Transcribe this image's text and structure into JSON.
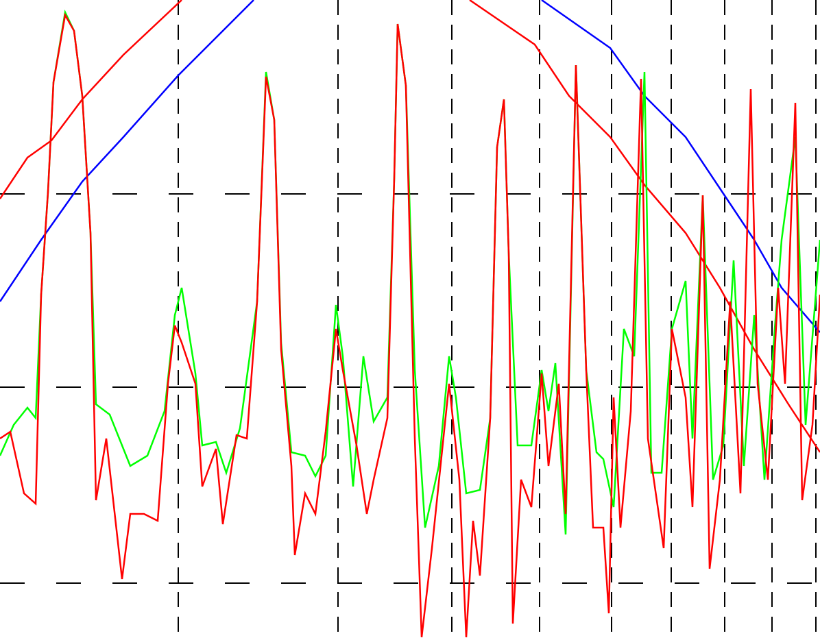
{
  "chart_data": {
    "type": "line",
    "grid": true,
    "xlim": [
      0,
      1196
    ],
    "ylim": [
      934,
      0
    ],
    "xticks": [
      260,
      493,
      659,
      787,
      892,
      979,
      1057,
      1126,
      1190
    ],
    "yticks": [
      283,
      565,
      851
    ],
    "series": [
      {
        "color": "#0000ff",
        "x": [
          0,
          60,
          120,
          180,
          260,
          370,
          500,
          790,
          890,
          940,
          1000,
          1060,
          1100,
          1140,
          1196
        ],
        "values": [
          440,
          350,
          265,
          200,
          110,
          0,
          null,
          0,
          70,
          140,
          200,
          290,
          350,
          420,
          485
        ]
      },
      {
        "color": "#ff0000",
        "x": [
          0,
          40,
          75,
          120,
          180,
          265,
          500,
          685,
          780,
          830,
          890,
          940,
          1000,
          1050,
          1100,
          1150,
          1196
        ],
        "values": [
          290,
          230,
          205,
          145,
          80,
          0,
          null,
          0,
          65,
          140,
          200,
          270,
          340,
          420,
          510,
          590,
          660
        ]
      },
      {
        "color": "#00ff00",
        "x": [
          0,
          20,
          40,
          52,
          60,
          70,
          78,
          95,
          108,
          120,
          132,
          140,
          160,
          190,
          215,
          240,
          255,
          265,
          285,
          295,
          315,
          330,
          350,
          375,
          388,
          400,
          410,
          425,
          445,
          460,
          475,
          490,
          500,
          515,
          530,
          545,
          565,
          575,
          580,
          592,
          605,
          620,
          640,
          655,
          665,
          680,
          700,
          715,
          725,
          735,
          742,
          755,
          775,
          790,
          800,
          810,
          825,
          840,
          855,
          870,
          880,
          895,
          910,
          925,
          940,
          950,
          965,
          980,
          1000,
          1010,
          1025,
          1040,
          1055,
          1070,
          1085,
          1100,
          1115,
          1130,
          1140,
          1160,
          1175,
          1196
        ],
        "values": [
          665,
          620,
          595,
          610,
          430,
          280,
          120,
          18,
          45,
          140,
          340,
          590,
          605,
          680,
          665,
          600,
          460,
          420,
          545,
          650,
          645,
          690,
          625,
          440,
          105,
          175,
          500,
          660,
          665,
          695,
          665,
          445,
          520,
          710,
          520,
          615,
          580,
          260,
          35,
          125,
          540,
          770,
          680,
          520,
          580,
          720,
          715,
          610,
          215,
          145,
          370,
          650,
          650,
          540,
          600,
          530,
          780,
          95,
          540,
          660,
          670,
          740,
          480,
          520,
          105,
          690,
          690,
          480,
          410,
          640,
          285,
          700,
          650,
          380,
          680,
          460,
          700,
          480,
          350,
          200,
          620,
          350
        ]
      },
      {
        "color": "#ff0000",
        "x": [
          0,
          15,
          35,
          52,
          60,
          70,
          78,
          95,
          108,
          120,
          132,
          140,
          155,
          178,
          190,
          210,
          230,
          245,
          255,
          265,
          285,
          295,
          315,
          325,
          345,
          360,
          375,
          388,
          400,
          410,
          425,
          430,
          445,
          460,
          475,
          490,
          500,
          520,
          535,
          545,
          565,
          575,
          580,
          592,
          605,
          615,
          630,
          655,
          670,
          680,
          690,
          700,
          715,
          725,
          735,
          742,
          748,
          760,
          775,
          790,
          800,
          815,
          825,
          840,
          855,
          865,
          880,
          888,
          895,
          905,
          920,
          935,
          945,
          968,
          980,
          1000,
          1010,
          1025,
          1035,
          1050,
          1065,
          1080,
          1095,
          1105,
          1120,
          1135,
          1145,
          1160,
          1170,
          1185,
          1196
        ],
        "values": [
          640,
          630,
          720,
          735,
          430,
          280,
          120,
          22,
          45,
          140,
          340,
          730,
          640,
          845,
          750,
          750,
          760,
          560,
          475,
          500,
          560,
          710,
          655,
          765,
          635,
          640,
          440,
          112,
          175,
          510,
          680,
          810,
          720,
          750,
          630,
          480,
          540,
          650,
          750,
          700,
          610,
          260,
          35,
          125,
          640,
          930,
          800,
          560,
          700,
          930,
          760,
          840,
          610,
          215,
          145,
          370,
          910,
          700,
          740,
          545,
          680,
          560,
          750,
          95,
          540,
          770,
          770,
          895,
          580,
          770,
          600,
          115,
          640,
          800,
          480,
          580,
          740,
          285,
          830,
          700,
          440,
          720,
          130,
          560,
          700,
          420,
          560,
          150,
          730,
          620,
          430
        ]
      }
    ]
  }
}
